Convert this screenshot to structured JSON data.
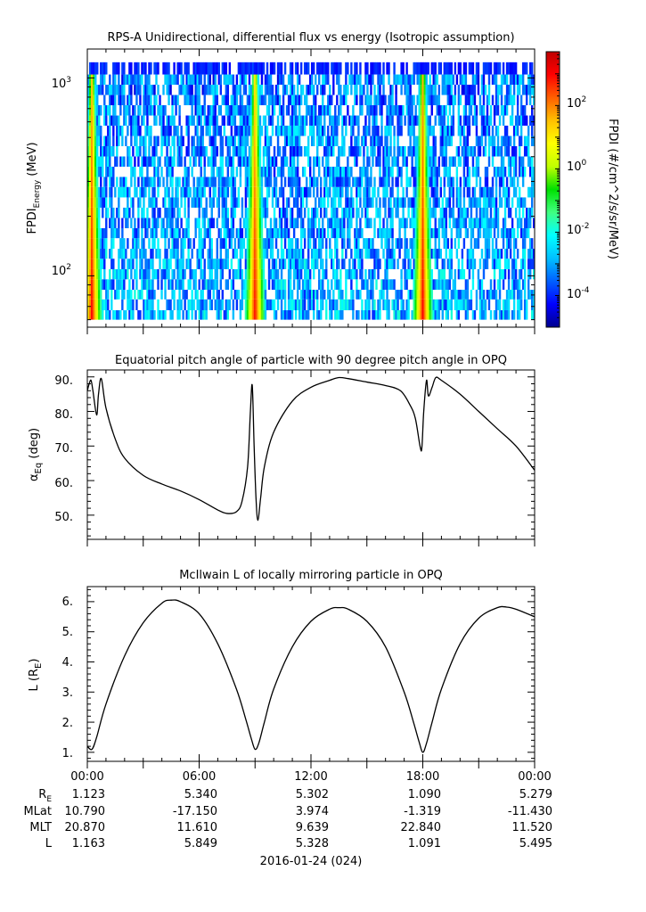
{
  "colors": {
    "axis": "#000000",
    "line": "#000000",
    "colorbar_stops": [
      "#00008f",
      "#0000ff",
      "#0060ff",
      "#00c0ff",
      "#00ffff",
      "#40ff80",
      "#00e000",
      "#c0ff00",
      "#ffff00",
      "#ffc000",
      "#ff6000",
      "#ff0000",
      "#c00000"
    ]
  },
  "panel1": {
    "title": "RPS-A Unidirectional, differential flux vs energy (Isotropic assumption)",
    "ylabel_main": "FPDI",
    "ylabel_sub": "Energy",
    "ylabel_unit": " (MeV)",
    "ytick_base": "10",
    "ytick_exps": [
      "3",
      "2"
    ],
    "colorbar_label": "FPDI (#/cm^2/s/sr/MeV)",
    "colorbar_base": "10",
    "colorbar_exps": [
      "2",
      "0",
      "-2",
      "-4"
    ]
  },
  "panel2": {
    "title": "Equatorial pitch angle of particle with 90 degree pitch angle in OPQ",
    "ylabel_main": "α",
    "ylabel_sub": "Eq",
    "ylabel_unit": " (deg)",
    "yticks": [
      "90.",
      "80.",
      "70.",
      "60.",
      "50."
    ]
  },
  "panel3": {
    "title": "McIlwain L of locally mirroring particle in OPQ",
    "ylabel_main": "L (R",
    "ylabel_sub": "E",
    "ylabel_unit": ")",
    "yticks": [
      "6.",
      "5.",
      "4.",
      "3.",
      "2.",
      "1."
    ]
  },
  "xaxis": {
    "ticks": [
      "00:00",
      "06:00",
      "12:00",
      "18:00",
      "00:00"
    ],
    "date_label": "2016-01-24 (024)"
  },
  "ephemeris": {
    "rows": [
      {
        "label": "R",
        "label_sub": "E",
        "values": [
          "1.123",
          "5.340",
          "5.302",
          "1.090",
          "5.279"
        ]
      },
      {
        "label": "MLat",
        "label_sub": "",
        "values": [
          "10.790",
          "-17.150",
          "3.974",
          "-1.319",
          "-11.430"
        ]
      },
      {
        "label": "MLT",
        "label_sub": "",
        "values": [
          "20.870",
          "11.610",
          "9.639",
          "22.840",
          "11.520"
        ]
      },
      {
        "label": "L",
        "label_sub": "",
        "values": [
          "1.163",
          "5.849",
          "5.328",
          "1.091",
          "5.495"
        ]
      }
    ]
  },
  "chart_data": [
    {
      "type": "heatmap",
      "title": "RPS-A Unidirectional, differential flux vs energy (Isotropic assumption)",
      "xlabel": "",
      "ylabel": "FPDI Energy (MeV)",
      "xlim_hours": [
        0,
        24
      ],
      "ylim": [
        55,
        1400
      ],
      "yscale": "log",
      "zlabel": "FPDI (#/cm^2/s/sr/MeV)",
      "zscale": "log",
      "zlim": [
        1e-05,
        5000
      ],
      "energy_bins_mev": [
        60,
        67,
        76,
        85,
        96,
        108,
        122,
        137,
        155,
        174,
        196,
        221,
        249,
        281,
        316,
        356,
        401,
        452,
        509,
        574,
        646,
        728,
        820,
        924,
        1041,
        1200
      ],
      "low_L_peak_times_hours": [
        0.25,
        9.0,
        18.0
      ],
      "peak_flux_max": 1000,
      "noise_floor": 0.0001
    },
    {
      "type": "line",
      "title": "Equatorial pitch angle of particle with 90 degree pitch angle in OPQ",
      "xlabel": "",
      "ylabel": "αEq (deg)",
      "xlim_hours": [
        0,
        24
      ],
      "ylim": [
        43,
        92
      ],
      "x": [
        0,
        0.1,
        0.2,
        0.3,
        0.5,
        0.6,
        0.75,
        1.0,
        1.5,
        2.0,
        3.0,
        4.0,
        5.0,
        6.0,
        7.0,
        7.5,
        8.0,
        8.3,
        8.6,
        8.75,
        8.85,
        8.95,
        9.05,
        9.15,
        9.3,
        9.5,
        10.0,
        11.0,
        12.0,
        13.0,
        13.5,
        14.0,
        15.0,
        16.0,
        16.8,
        17.3,
        17.6,
        17.85,
        17.95,
        18.05,
        18.2,
        18.3,
        18.5,
        18.7,
        19.0,
        20.0,
        21.0,
        22.0,
        23.0,
        24.0
      ],
      "values": [
        86,
        88,
        89,
        86,
        79,
        85,
        89.5,
        81,
        72,
        66.5,
        61.5,
        59,
        57,
        54.5,
        51.5,
        50.5,
        51,
        54,
        64,
        80,
        87.5,
        70,
        55,
        48.5,
        55,
        64,
        74,
        83,
        87,
        89,
        89.8,
        89.5,
        88.5,
        87.5,
        86,
        82,
        78,
        70,
        69.5,
        80,
        89,
        84.5,
        87,
        89.8,
        89,
        85,
        80,
        75,
        70,
        63
      ]
    },
    {
      "type": "line",
      "title": "McIlwain L of locally mirroring particle in OPQ",
      "xlabel": "",
      "ylabel": "L (RE)",
      "xlim_hours": [
        0,
        24
      ],
      "ylim": [
        0.7,
        6.5
      ],
      "x": [
        0,
        0.25,
        0.5,
        1.0,
        2.0,
        3.0,
        4.0,
        4.5,
        5.0,
        6.0,
        7.0,
        8.0,
        8.5,
        8.8,
        9.0,
        9.2,
        9.5,
        10.0,
        11.0,
        12.0,
        13.0,
        13.5,
        14.0,
        15.0,
        16.0,
        17.0,
        17.5,
        17.8,
        18.0,
        18.2,
        18.5,
        19.0,
        20.0,
        21.0,
        22.0,
        22.5,
        23.0,
        24.0
      ],
      "values": [
        1.2,
        1.1,
        1.5,
        2.6,
        4.2,
        5.3,
        5.95,
        6.05,
        6.0,
        5.6,
        4.6,
        3.1,
        2.1,
        1.45,
        1.1,
        1.3,
        2.0,
        3.1,
        4.5,
        5.35,
        5.75,
        5.8,
        5.75,
        5.35,
        4.5,
        3.0,
        2.0,
        1.35,
        1.0,
        1.3,
        2.0,
        3.1,
        4.6,
        5.45,
        5.8,
        5.82,
        5.75,
        5.5
      ]
    }
  ]
}
